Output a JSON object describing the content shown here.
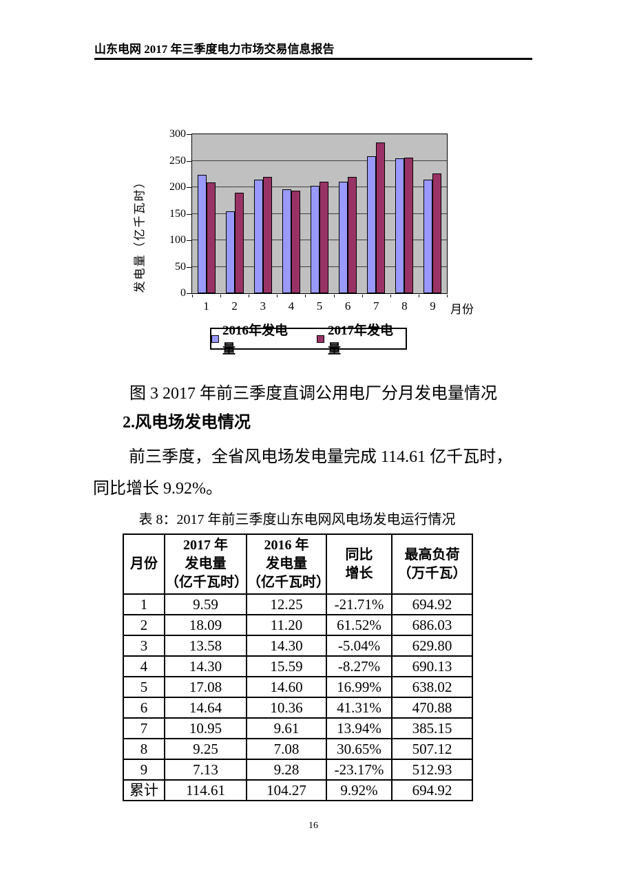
{
  "header": {
    "title": "山东电网 2017 年三季度电力市场交易信息报告"
  },
  "chart_data": {
    "type": "bar",
    "title": "",
    "categories": [
      "1",
      "2",
      "3",
      "4",
      "5",
      "6",
      "7",
      "8",
      "9"
    ],
    "series": [
      {
        "name": "2016年发电量",
        "color": "#9999FF",
        "values": [
          224,
          155,
          214,
          196,
          203,
          211,
          259,
          254,
          214
        ]
      },
      {
        "name": "2017年发电量",
        "color": "#993366",
        "values": [
          209,
          189,
          220,
          193,
          210,
          220,
          284,
          256,
          226
        ]
      }
    ],
    "xlabel": "月份",
    "ylabel": "发电量（亿千瓦时）",
    "ylim": [
      0,
      300
    ],
    "ytick_step": 50,
    "grid": true,
    "legend_position": "bottom",
    "plot_bg": "#C0C0C0"
  },
  "figure": {
    "caption": "图 3 2017 年前三季度直调公用电厂分月发电量情况"
  },
  "section": {
    "heading": "2.风电场发电情况"
  },
  "paragraph": {
    "line1": "前三季度，全省风电场发电量完成 114.61 亿千瓦时，",
    "line2": "同比增长 9.92%。"
  },
  "table": {
    "caption": "表 8：2017 年前三季度山东电网风电场发电运行情况",
    "headers": [
      "月份",
      "2017 年\n发电量\n（亿千瓦时）",
      "2016 年\n发电量\n（亿千瓦时）",
      "同比\n增长",
      "最高负荷\n（万千瓦）"
    ],
    "rows": [
      [
        "1",
        "9.59",
        "12.25",
        "-21.71%",
        "694.92"
      ],
      [
        "2",
        "18.09",
        "11.20",
        "61.52%",
        "686.03"
      ],
      [
        "3",
        "13.58",
        "14.30",
        "-5.04%",
        "629.80"
      ],
      [
        "4",
        "14.30",
        "15.59",
        "-8.27%",
        "690.13"
      ],
      [
        "5",
        "17.08",
        "14.60",
        "16.99%",
        "638.02"
      ],
      [
        "6",
        "14.64",
        "10.36",
        "41.31%",
        "470.88"
      ],
      [
        "7",
        "10.95",
        "9.61",
        "13.94%",
        "385.15"
      ],
      [
        "8",
        "9.25",
        "7.08",
        "30.65%",
        "507.12"
      ],
      [
        "9",
        "7.13",
        "9.28",
        "-23.17%",
        "512.93"
      ],
      [
        "累计",
        "114.61",
        "104.27",
        "9.92%",
        "694.92"
      ]
    ]
  },
  "footer": {
    "page_number": "16"
  }
}
